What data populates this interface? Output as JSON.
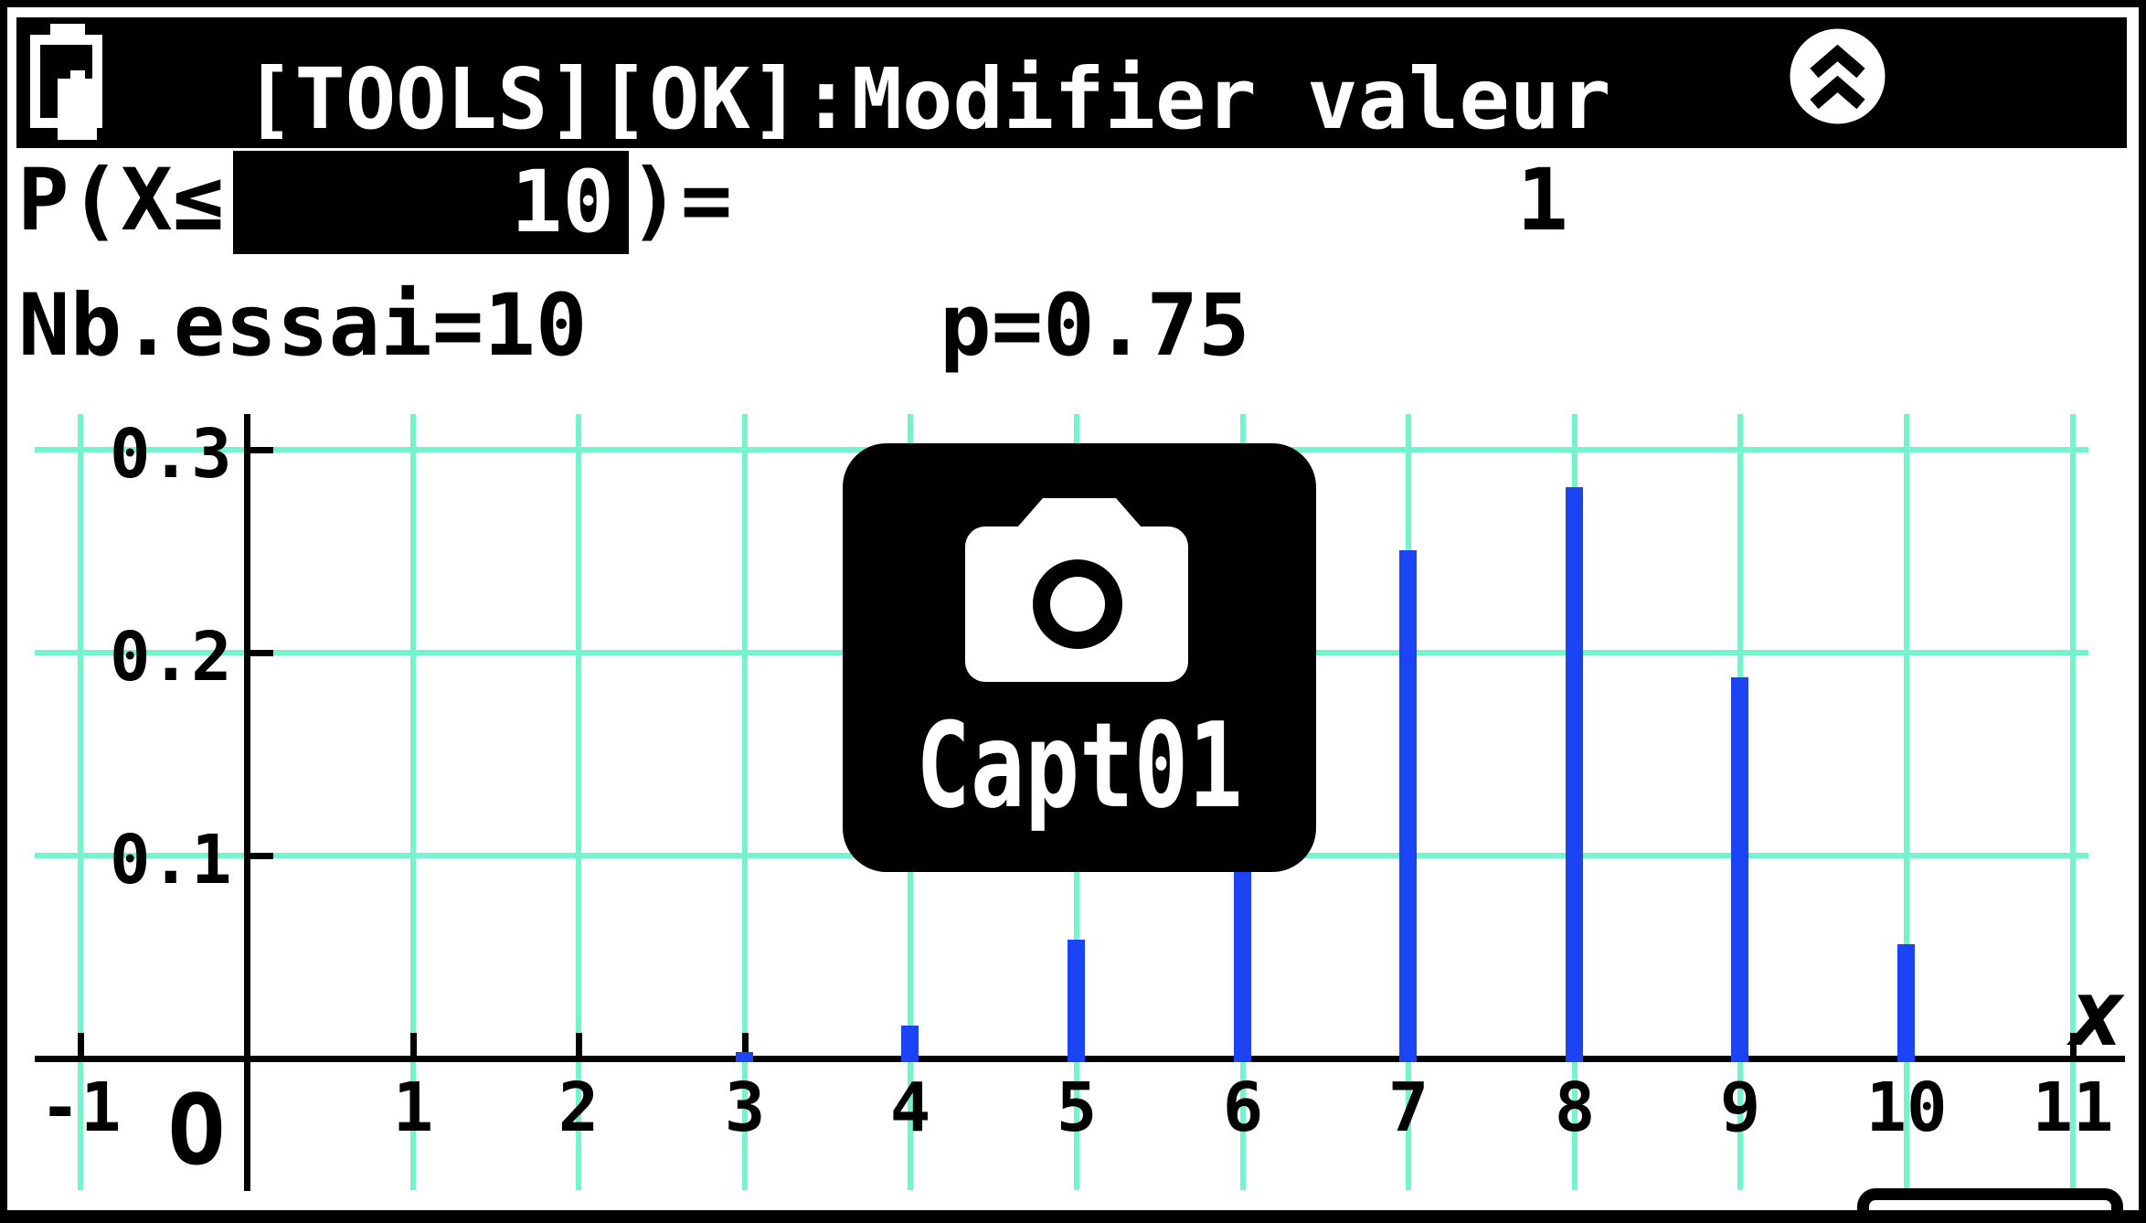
{
  "colors": {
    "background": "#ffffff",
    "foreground": "#000000",
    "grid": "#74f4cc",
    "stem": "#1c44f4",
    "bar_text": "#ffffff"
  },
  "status_bar": {
    "title": "[TOOLS][OK]:Modifier valeur",
    "battery_icon": "battery-full",
    "collapse_icon": "chevron-double-up"
  },
  "probability_row": {
    "prefix": "P(X≤",
    "value": "10",
    "suffix": ")=",
    "result": "1"
  },
  "params_row": {
    "trials_label": "Nb.essai=10",
    "p_label": "p=0.75"
  },
  "capture_overlay": {
    "icon": "camera",
    "label": "Capt01"
  },
  "chart_data": {
    "type": "bar",
    "title": "Distribution binomiale B(n=10, p=0.75)",
    "x": [
      0,
      1,
      2,
      3,
      4,
      5,
      6,
      7,
      8,
      9,
      10
    ],
    "values": [
      9.5e-07,
      2.86e-05,
      0.000386,
      0.0031,
      0.0162,
      0.0584,
      0.146,
      0.2503,
      0.2816,
      0.1877,
      0.0563
    ],
    "xlabel": "x",
    "ylabel": "",
    "xlim": [
      -1.3,
      11.4
    ],
    "ylim": [
      0,
      0.32
    ],
    "grid": true,
    "legend_position": "none",
    "x_tick_units": [
      -1,
      0,
      1,
      2,
      3,
      4,
      5,
      6,
      7,
      8,
      9,
      10,
      11
    ],
    "x_tick_labels": [
      "-1",
      "O",
      "1",
      "2",
      "3",
      "4",
      "5",
      "6",
      "7",
      "8",
      "9",
      "10",
      "11"
    ],
    "y_tick_units": [
      0.1,
      0.2,
      0.3
    ],
    "y_tick_labels": [
      "0.1",
      "0.2",
      "0.3"
    ]
  }
}
